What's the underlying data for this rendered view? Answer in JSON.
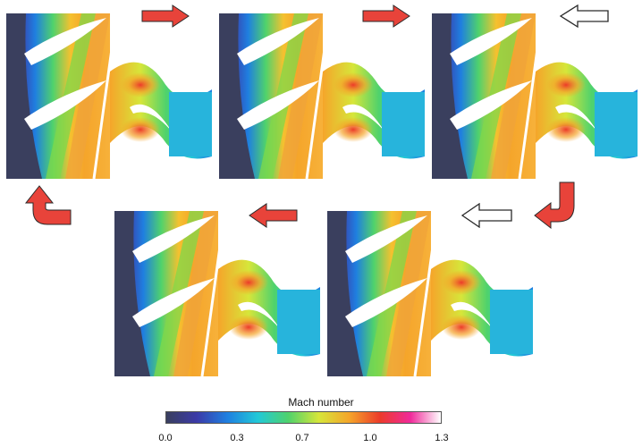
{
  "colors": {
    "arrow_filled": "#e8433a",
    "arrow_outline_fill": "#ffffff",
    "arrow_stroke": "#2a2a2a"
  },
  "colorbar": {
    "title": "Mach number",
    "ticks": [
      "0.0",
      "0.3",
      "0.7",
      "1.0",
      "1.3"
    ],
    "tick_values": [
      0.0,
      0.3,
      0.7,
      1.0,
      1.3
    ],
    "range": [
      0.0,
      1.3
    ],
    "gradient_colors": [
      "#3a3f5e",
      "#3b3aa8",
      "#1f7fe0",
      "#22c9d8",
      "#4fd26c",
      "#d6e63a",
      "#f5a52a",
      "#ec3b2a",
      "#f02a9a",
      "#ffffff"
    ]
  },
  "sequence": [
    {
      "step": 1,
      "style": "filled",
      "direction": "right"
    },
    {
      "step": 2,
      "style": "filled",
      "direction": "right"
    },
    {
      "step": 3,
      "style": "outline",
      "direction": "left"
    },
    {
      "step": 4,
      "style": "filled",
      "direction": "down-left"
    },
    {
      "step": 5,
      "style": "outline",
      "direction": "left"
    },
    {
      "step": 6,
      "style": "filled",
      "direction": "left"
    },
    {
      "step": 7,
      "style": "filled",
      "direction": "up"
    }
  ]
}
